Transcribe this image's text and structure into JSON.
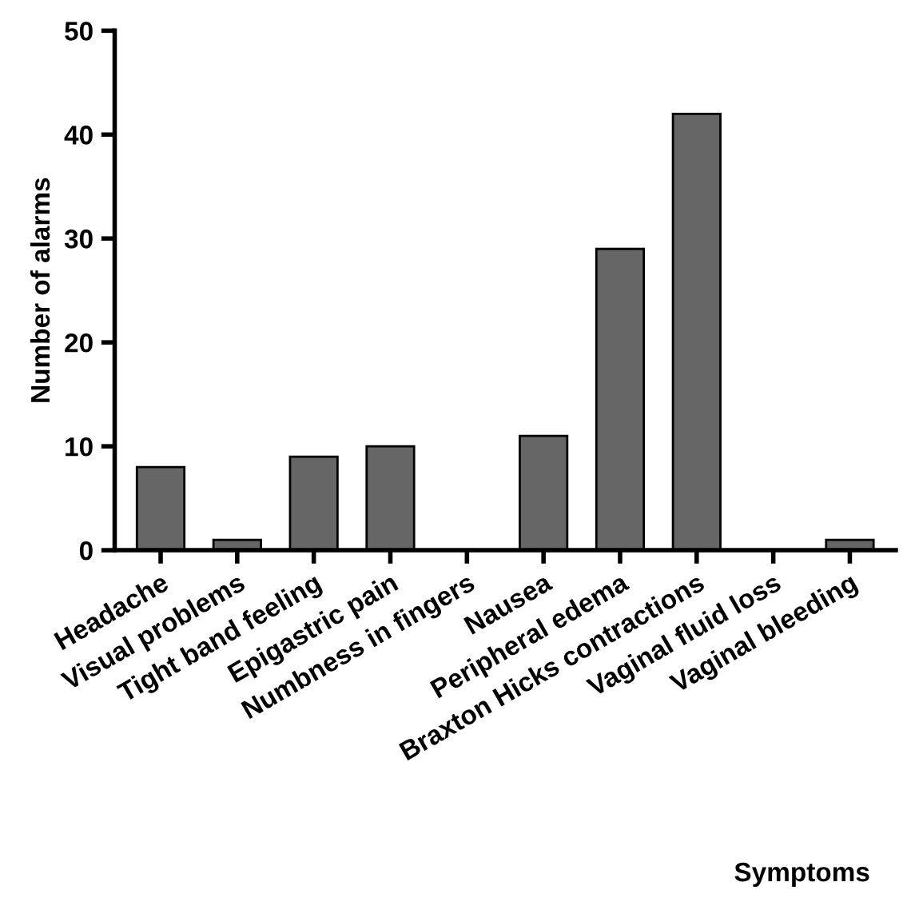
{
  "chart_data": {
    "type": "bar",
    "xlabel": "Symptoms",
    "ylabel": "Number of alarms",
    "categories": [
      "Headache",
      "Visual problems",
      "Tight band feeling",
      "Epigastric pain",
      "Numbness in fingers",
      "Nausea",
      "Peripheral edema",
      "Braxton Hicks contractions",
      "Vaginal fluid loss",
      "Vaginal bleeding"
    ],
    "values": [
      8,
      1,
      9,
      10,
      0,
      11,
      29,
      42,
      0,
      1
    ],
    "color": "#666666",
    "ylim": [
      0,
      50
    ],
    "yticks": [
      0,
      10,
      20,
      30,
      40,
      50
    ],
    "grid": false
  }
}
